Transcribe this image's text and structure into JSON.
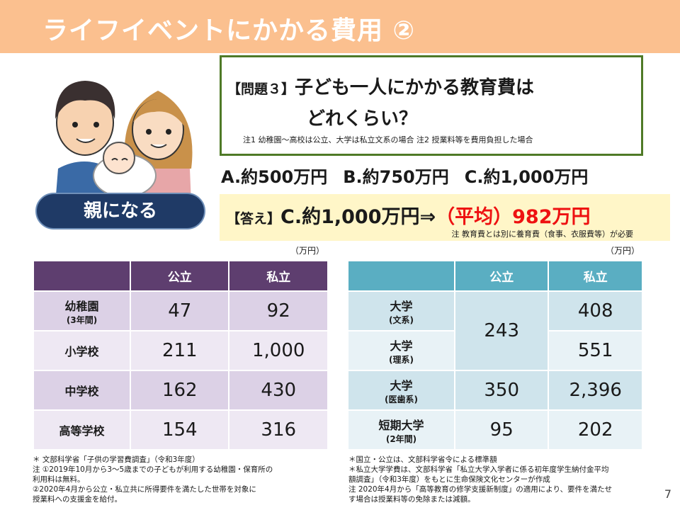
{
  "title": "ライフイベントにかかる費用 ②",
  "badge": "親になる",
  "question": {
    "tag": "【問題３】",
    "line1": "子ども一人にかかる教育費は",
    "line2": "どれくらい？",
    "note": "注1  幼稚園～高校は公立、大学は私立文系の場合  注2  授業料等を費用負担した場合"
  },
  "choices": [
    "A.約500万円",
    "B.約750万円",
    "C.約1,000万円"
  ],
  "answer": {
    "tag": "【答え】",
    "main": "C.約1,000万円⇒",
    "red": "（平均）982万円",
    "note": "注  教育費とは別に養育費（食事、衣服費等）が必要"
  },
  "unit_label": "（万円）",
  "table_school": {
    "headers": [
      "",
      "公立",
      "私立"
    ],
    "rows": [
      {
        "label": "幼稚園",
        "sub": "(3年間)",
        "public": "47",
        "private": "92"
      },
      {
        "label": "小学校",
        "sub": "",
        "public": "211",
        "private": "1,000"
      },
      {
        "label": "中学校",
        "sub": "",
        "public": "162",
        "private": "430"
      },
      {
        "label": "高等学校",
        "sub": "",
        "public": "154",
        "private": "316"
      }
    ]
  },
  "table_univ": {
    "headers": [
      "",
      "公立",
      "私立"
    ],
    "rows": [
      {
        "label": "大学",
        "sub": "(文系)",
        "public": "243",
        "private": "408"
      },
      {
        "label": "大学",
        "sub": "(理系)",
        "public": "",
        "private": "551"
      },
      {
        "label": "大学",
        "sub": "(医歯系)",
        "public": "350",
        "private": "2,396"
      },
      {
        "label": "短期大学",
        "sub": "(2年間)",
        "public": "95",
        "private": "202"
      }
    ]
  },
  "footnotes_left": [
    "＊ 文部科学省「子供の学習費調査」（令和3年度）",
    "注 ①2019年10月から3～5歳までの子どもが利用する幼稚園・保育所の",
    "      利用料は無料。",
    "    ②2020年4月から公立・私立共に所得要件を満たした世帯を対象に",
    "      授業料への支援金を給付。"
  ],
  "footnotes_right": [
    "＊国立・公立は、文部科学省令による標準額",
    "＊私立大学学費は、文部科学省「私立大学入学者に係る初年度学生納付金平均",
    "   額調査」（令和3年度）をもとに生命保険文化センターが作成",
    "注 2020年4月から「高等教育の修学支援新制度」の適用により、要件を満たせ",
    "   す場合は授業料等の免除または減額。"
  ],
  "page_number": "7"
}
